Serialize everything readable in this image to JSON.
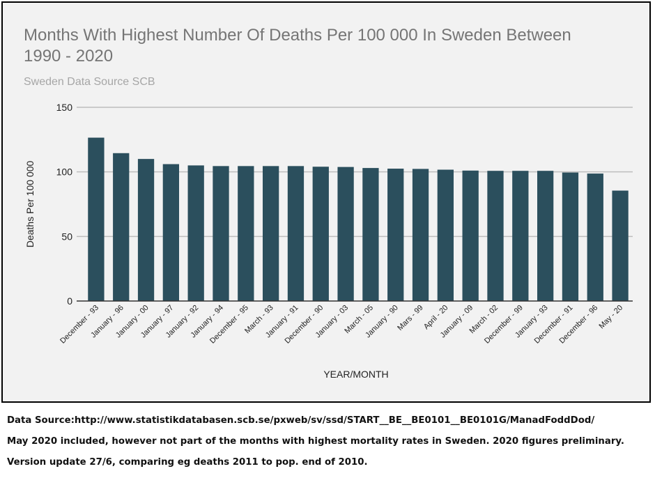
{
  "chart_data": {
    "type": "bar",
    "title_lines": [
      "Months With Highest Number Of Deaths Per 100 000 In Sweden Between",
      "1990 - 2020"
    ],
    "subtitle": "Sweden Data Source SCB",
    "xlabel": "YEAR/MONTH",
    "ylabel": "Deaths Per 100 000",
    "ylim": [
      0,
      150
    ],
    "yticks": [
      0,
      50,
      100,
      150
    ],
    "grid": true,
    "bar_color": "#2b4f5d",
    "categories": [
      "December - 93",
      "January - 96",
      "January - 00",
      "January - 97",
      "January - 92",
      "January - 94",
      "December - 95",
      "March - 93",
      "January - 91",
      "December - 90",
      "January - 03",
      "March - 05",
      "January - 90",
      "Mars - 99",
      "April - 20",
      "January - 09",
      "March - 02",
      "December - 99",
      "January - 93",
      "December - 91",
      "December - 96",
      "May - 20"
    ],
    "values": [
      126.5,
      114.5,
      110,
      106,
      105,
      104.5,
      104.5,
      104.5,
      104.5,
      104,
      103.8,
      103,
      102.5,
      102.3,
      101.7,
      101,
      100.8,
      100.8,
      100.8,
      99.5,
      98.7,
      85.5
    ]
  },
  "footnotes": [
    "Data Source:http://www.statistikdatabasen.scb.se/pxweb/sv/ssd/START__BE__BE0101__BE0101G/ManadFoddDod/",
    "May 2020 included, however not part of the months with highest mortality rates in Sweden. 2020 figures preliminary.",
    "Version update 27/6, comparing eg deaths 2011 to pop. end of 2010."
  ]
}
